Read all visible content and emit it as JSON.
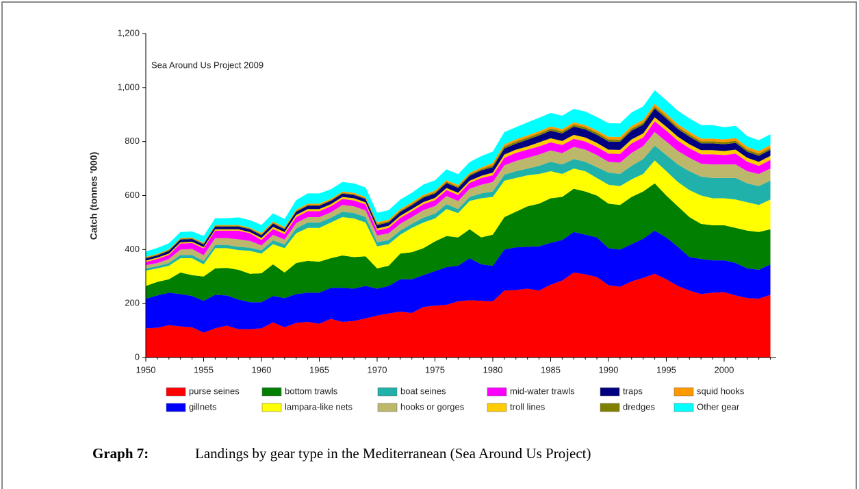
{
  "chart_data": {
    "type": "stacked_area",
    "annotation": "Sea Around Us Project 2009",
    "ylabel": "Catch (tonnes '000)",
    "caption_label": "Graph 7:",
    "caption": "Landings by gear type in the Mediterranean (Sea Around Us Project)",
    "x": [
      1950,
      1951,
      1952,
      1953,
      1954,
      1955,
      1956,
      1957,
      1958,
      1959,
      1960,
      1961,
      1962,
      1963,
      1964,
      1965,
      1966,
      1967,
      1968,
      1969,
      1970,
      1971,
      1972,
      1973,
      1974,
      1975,
      1976,
      1977,
      1978,
      1979,
      1980,
      1981,
      1982,
      1983,
      1984,
      1985,
      1986,
      1987,
      1988,
      1989,
      1990,
      1991,
      1992,
      1993,
      1994,
      1995,
      1996,
      1997,
      1998,
      1999,
      2000,
      2001,
      2002,
      2003,
      2004
    ],
    "xlim": [
      1950,
      2004.5
    ],
    "xticks": [
      1950,
      1955,
      1960,
      1965,
      1970,
      1975,
      1980,
      1985,
      1990,
      1995,
      2000
    ],
    "ylim": [
      0,
      1200
    ],
    "yticks": [
      0,
      200,
      400,
      600,
      800,
      {
        "value": 1000,
        "label": "1,000"
      },
      {
        "value": 1200,
        "label": "1,200"
      }
    ],
    "series": [
      {
        "name": "purse seines",
        "color": "#ff0000",
        "values": [
          108,
          110,
          120,
          115,
          112,
          92,
          108,
          118,
          105,
          105,
          108,
          130,
          112,
          128,
          132,
          125,
          143,
          132,
          135,
          145,
          155,
          163,
          170,
          165,
          187,
          192,
          195,
          208,
          212,
          210,
          208,
          248,
          250,
          255,
          248,
          270,
          285,
          315,
          308,
          298,
          268,
          262,
          282,
          295,
          310,
          290,
          265,
          248,
          235,
          240,
          242,
          230,
          220,
          218,
          232
        ]
      },
      {
        "name": "gillnets",
        "color": "#0000ff",
        "values": [
          110,
          120,
          120,
          120,
          116,
          118,
          124,
          112,
          110,
          100,
          97,
          98,
          108,
          107,
          108,
          115,
          115,
          126,
          120,
          120,
          100,
          102,
          120,
          125,
          118,
          128,
          140,
          132,
          156,
          135,
          132,
          152,
          158,
          155,
          164,
          155,
          150,
          150,
          147,
          147,
          137,
          138,
          138,
          145,
          160,
          155,
          145,
          124,
          130,
          120,
          118,
          120,
          110,
          107,
          113
        ]
      },
      {
        "name": "bottom trawls",
        "color": "#007f00",
        "values": [
          47,
          50,
          50,
          80,
          77,
          90,
          98,
          102,
          110,
          105,
          107,
          117,
          95,
          115,
          118,
          115,
          110,
          120,
          117,
          110,
          75,
          75,
          95,
          100,
          100,
          110,
          115,
          105,
          107,
          100,
          115,
          120,
          132,
          150,
          158,
          165,
          160,
          160,
          160,
          155,
          165,
          165,
          175,
          175,
          175,
          155,
          150,
          148,
          130,
          130,
          130,
          130,
          140,
          140,
          130
        ]
      },
      {
        "name": "lampara-like nets",
        "color": "#ffff00",
        "values": [
          57,
          50,
          50,
          53,
          63,
          45,
          75,
          73,
          73,
          85,
          73,
          75,
          90,
          110,
          122,
          125,
          132,
          142,
          143,
          125,
          82,
          80,
          70,
          90,
          95,
          85,
          100,
          90,
          105,
          145,
          140,
          135,
          125,
          115,
          110,
          100,
          85,
          75,
          75,
          65,
          70,
          70,
          65,
          65,
          85,
          90,
          90,
          100,
          105,
          100,
          100,
          105,
          105,
          100,
          110
        ]
      },
      {
        "name": "boat seines",
        "color": "#20b2aa",
        "values": [
          8,
          8,
          10,
          12,
          12,
          12,
          12,
          12,
          12,
          12,
          12,
          14,
          14,
          18,
          20,
          20,
          18,
          20,
          20,
          20,
          15,
          15,
          15,
          15,
          18,
          18,
          18,
          15,
          15,
          18,
          20,
          22,
          25,
          25,
          30,
          35,
          35,
          35,
          35,
          40,
          45,
          45,
          50,
          55,
          55,
          60,
          65,
          70,
          70,
          75,
          75,
          80,
          70,
          70,
          70
        ]
      },
      {
        "name": "hooks or gorges",
        "color": "#bdb76b",
        "values": [
          12,
          12,
          15,
          20,
          22,
          22,
          25,
          25,
          28,
          25,
          18,
          20,
          18,
          20,
          20,
          20,
          20,
          25,
          25,
          25,
          25,
          25,
          25,
          25,
          28,
          28,
          30,
          30,
          30,
          32,
          35,
          35,
          38,
          40,
          42,
          42,
          42,
          45,
          45,
          45,
          40,
          42,
          48,
          48,
          50,
          50,
          50,
          50,
          48,
          50,
          50,
          50,
          45,
          45,
          45
        ]
      },
      {
        "name": "mid-water trawls",
        "color": "#ff00ff",
        "values": [
          12,
          15,
          15,
          22,
          22,
          25,
          28,
          28,
          32,
          28,
          20,
          22,
          20,
          22,
          22,
          22,
          22,
          22,
          22,
          22,
          18,
          20,
          22,
          22,
          22,
          22,
          22,
          22,
          22,
          25,
          25,
          28,
          30,
          30,
          30,
          30,
          30,
          30,
          30,
          30,
          30,
          32,
          35,
          32,
          40,
          40,
          38,
          35,
          35,
          38,
          35,
          40,
          35,
          30,
          32
        ]
      },
      {
        "name": "troll lines",
        "color": "#ffcc00",
        "values": [
          5,
          5,
          5,
          5,
          5,
          5,
          5,
          5,
          5,
          5,
          8,
          8,
          8,
          8,
          8,
          8,
          8,
          8,
          8,
          8,
          8,
          8,
          8,
          8,
          8,
          8,
          8,
          8,
          8,
          8,
          10,
          12,
          12,
          12,
          15,
          15,
          15,
          15,
          15,
          15,
          15,
          15,
          15,
          15,
          15,
          15,
          15,
          15,
          15,
          15,
          15,
          15,
          15,
          15,
          15
        ]
      },
      {
        "name": "traps",
        "color": "#000080",
        "values": [
          8,
          8,
          10,
          10,
          10,
          10,
          10,
          10,
          10,
          10,
          10,
          12,
          10,
          12,
          12,
          12,
          12,
          12,
          12,
          12,
          12,
          12,
          14,
          14,
          16,
          16,
          18,
          18,
          18,
          20,
          20,
          22,
          22,
          25,
          25,
          28,
          28,
          30,
          30,
          30,
          30,
          30,
          32,
          32,
          32,
          30,
          28,
          28,
          25,
          25,
          25,
          25,
          22,
          22,
          22
        ]
      },
      {
        "name": "dredges",
        "color": "#808000",
        "values": [
          3,
          3,
          3,
          3,
          3,
          3,
          3,
          3,
          3,
          3,
          3,
          3,
          3,
          3,
          3,
          3,
          3,
          3,
          3,
          3,
          5,
          5,
          5,
          5,
          5,
          5,
          5,
          5,
          5,
          5,
          8,
          8,
          8,
          8,
          8,
          8,
          8,
          8,
          8,
          8,
          8,
          8,
          8,
          8,
          8,
          8,
          8,
          8,
          8,
          8,
          8,
          8,
          8,
          8,
          8
        ]
      },
      {
        "name": "squid hooks",
        "color": "#ff9900",
        "values": [
          3,
          3,
          3,
          3,
          3,
          3,
          3,
          3,
          3,
          3,
          5,
          5,
          5,
          5,
          5,
          5,
          5,
          5,
          5,
          5,
          6,
          6,
          6,
          6,
          6,
          6,
          6,
          6,
          6,
          6,
          8,
          8,
          8,
          8,
          8,
          8,
          8,
          8,
          8,
          8,
          10,
          10,
          10,
          10,
          10,
          10,
          10,
          10,
          10,
          10,
          10,
          10,
          10,
          10,
          10
        ]
      },
      {
        "name": "Other gear",
        "color": "#00ffff",
        "values": [
          20,
          22,
          22,
          22,
          22,
          25,
          25,
          25,
          28,
          28,
          30,
          30,
          30,
          35,
          38,
          38,
          35,
          35,
          35,
          35,
          35,
          35,
          35,
          35,
          38,
          38,
          40,
          40,
          40,
          42,
          42,
          45,
          45,
          48,
          50,
          50,
          50,
          50,
          50,
          50,
          50,
          50,
          50,
          50,
          50,
          50,
          50,
          50,
          50,
          50,
          45,
          45,
          40,
          40,
          40
        ]
      }
    ]
  }
}
